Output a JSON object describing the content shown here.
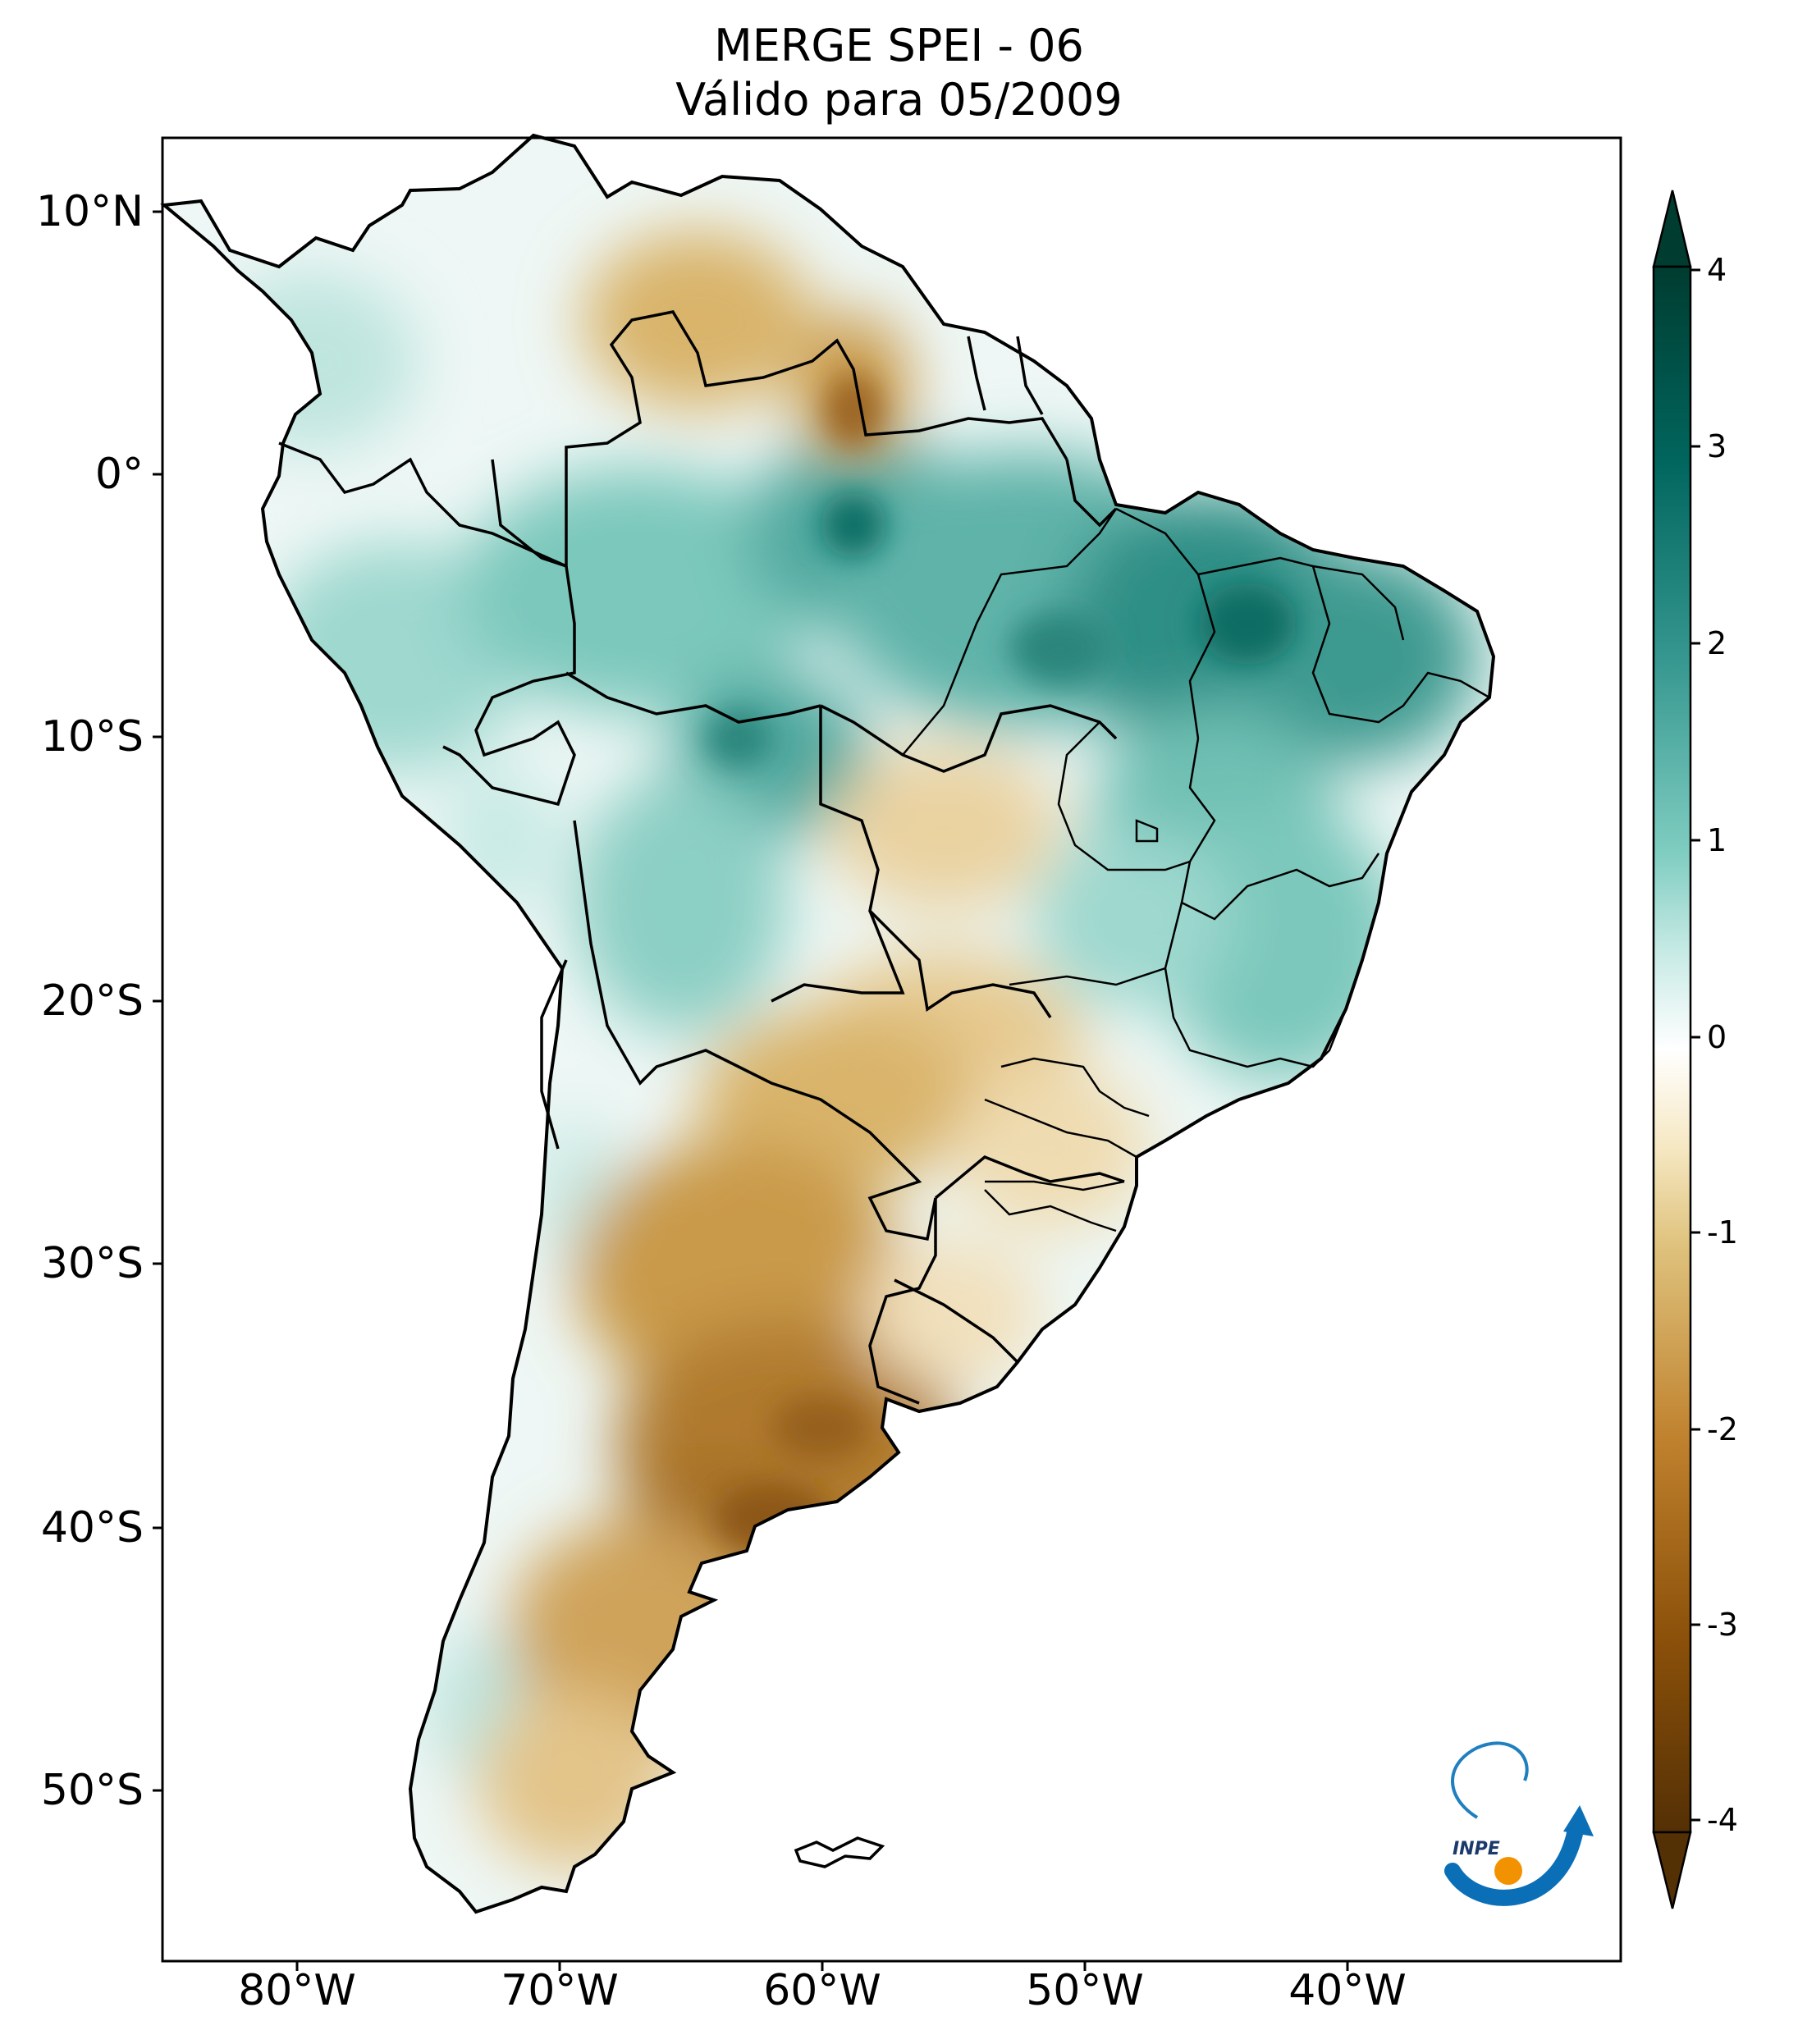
{
  "title": {
    "line1": "MERGE   SPEI - 06",
    "line2": "Válido para 05/2009"
  },
  "map": {
    "variable": "SPEI - 06",
    "dataset": "MERGE",
    "region": "South America",
    "lat_ticks": [
      "10°N",
      "0°",
      "10°S",
      "20°S",
      "30°S",
      "40°S",
      "50°S"
    ],
    "lon_ticks": [
      "80°W",
      "70°W",
      "60°W",
      "50°W",
      "40°W"
    ],
    "lat_range": [
      -56,
      12.5
    ],
    "lon_range": [
      -85,
      -30
    ],
    "anomalies": [
      {
        "name": "wet Amazon / Northeast Brazil",
        "lon": -50,
        "lat": -5,
        "value": 2.5
      },
      {
        "name": "wet Piauí / Ceará",
        "lon": -42,
        "lat": -5,
        "value": 3.0
      },
      {
        "name": "dry Venezuela / Roraima",
        "lon": -62,
        "lat": 4,
        "value": -1.8
      },
      {
        "name": "dry central Argentina",
        "lon": -64,
        "lat": -30,
        "value": -2.0
      },
      {
        "name": "dry Buenos Aires / La Pampa",
        "lon": -62,
        "lat": -37,
        "value": -2.8
      },
      {
        "name": "dry Patagonia",
        "lon": -68,
        "lat": -45,
        "value": -1.5
      }
    ]
  },
  "colorbar": {
    "ticks": [
      "4",
      "3",
      "2",
      "1",
      "0",
      "-1",
      "-2",
      "-3",
      "-4"
    ],
    "stops": [
      {
        "value": -4,
        "color": "#543005"
      },
      {
        "value": -3,
        "color": "#8c510a"
      },
      {
        "value": -2,
        "color": "#bf812d"
      },
      {
        "value": -1,
        "color": "#dfc27d"
      },
      {
        "value": -0.5,
        "color": "#f6e8c3"
      },
      {
        "value": 0,
        "color": "#ffffff"
      },
      {
        "value": 0.5,
        "color": "#c7eae5"
      },
      {
        "value": 1,
        "color": "#80cdc1"
      },
      {
        "value": 2,
        "color": "#35978f"
      },
      {
        "value": 3,
        "color": "#01665e"
      },
      {
        "value": 4,
        "color": "#003c30"
      }
    ]
  },
  "logo": {
    "text": "INPE"
  }
}
